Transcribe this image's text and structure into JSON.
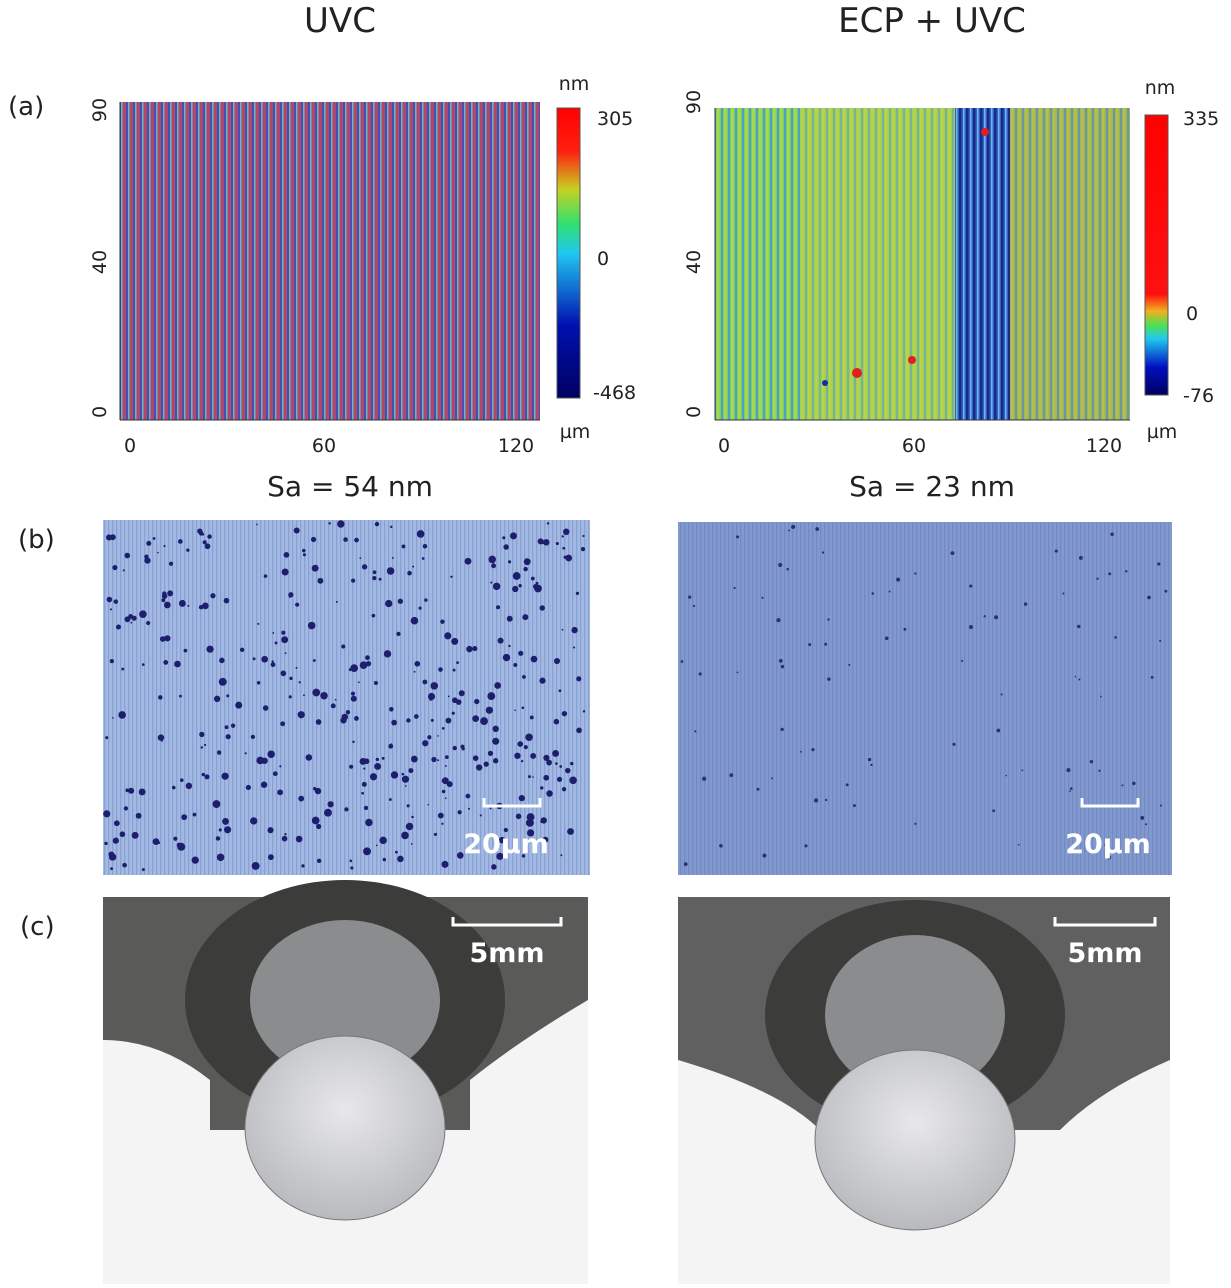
{
  "panel_labels": [
    "(a)",
    "(b)",
    "(c)"
  ],
  "columns": [
    {
      "title": "UVC",
      "heatmap": {
        "y_ticks": [
          "90",
          "40",
          "0"
        ],
        "x_ticks": [
          "0",
          "60",
          "120"
        ],
        "x_unit": "µm",
        "colorbar": {
          "unit": "nm",
          "ticks": [
            "305",
            "0",
            "-468"
          ]
        }
      },
      "roughness": "Sa = 54 nm",
      "micrograph_scale": "20µm",
      "photo_scale": "5mm"
    },
    {
      "title": "ECP + UVC",
      "heatmap": {
        "y_ticks": [
          "90",
          "40",
          "0"
        ],
        "x_ticks": [
          "0",
          "60",
          "120"
        ],
        "x_unit": "µm",
        "colorbar": {
          "unit": "nm",
          "ticks": [
            "335",
            "0",
            "-76"
          ]
        }
      },
      "roughness": "Sa = 23 nm",
      "micrograph_scale": "20µm",
      "photo_scale": "5mm"
    }
  ]
}
